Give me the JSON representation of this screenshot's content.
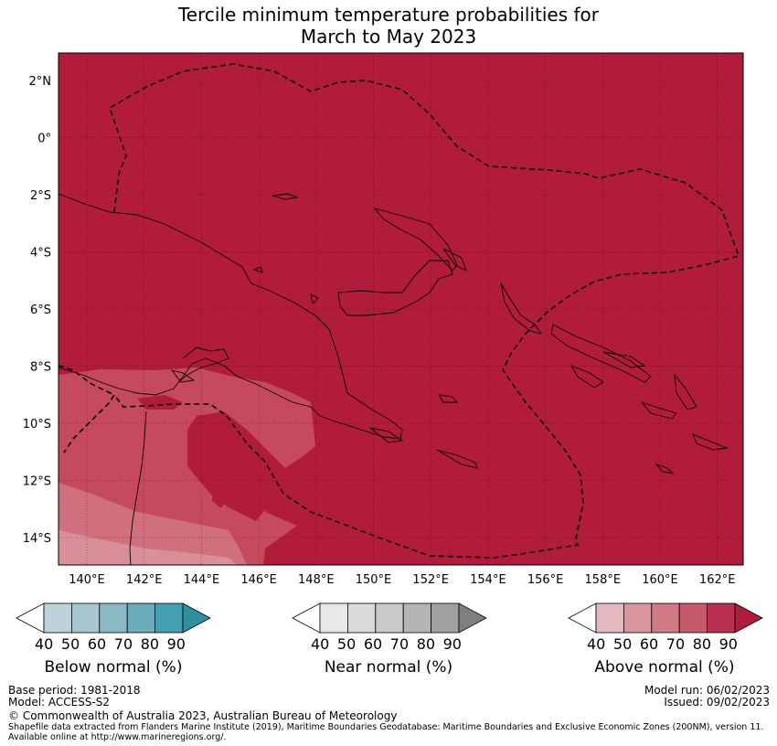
{
  "title_line1": "Tercile minimum temperature probabilities for",
  "title_line2": "March to May 2023",
  "lat_ticks": [
    "2°N",
    "0°",
    "2°S",
    "4°S",
    "6°S",
    "8°S",
    "10°S",
    "12°S",
    "14°S"
  ],
  "lon_ticks": [
    "140°E",
    "142°E",
    "144°E",
    "146°E",
    "148°E",
    "150°E",
    "152°E",
    "154°E",
    "156°E",
    "158°E",
    "160°E",
    "162°E"
  ],
  "colorbars": [
    {
      "label": "Below normal (%)",
      "ticks": [
        "40",
        "50",
        "60",
        "70",
        "80",
        "90"
      ],
      "colors": [
        "#ffffff",
        "#bcd3da",
        "#a6c7cf",
        "#8ab9c4",
        "#6aacba",
        "#43a0b0",
        "#2e8f9e"
      ]
    },
    {
      "label": "Near normal (%)",
      "ticks": [
        "40",
        "50",
        "60",
        "70",
        "80",
        "90"
      ],
      "colors": [
        "#ffffff",
        "#e8e8e8",
        "#d9d9d9",
        "#c9c9c9",
        "#b5b5b5",
        "#a0a0a0",
        "#7f7f7f"
      ]
    },
    {
      "label": "Above normal (%)",
      "ticks": [
        "40",
        "50",
        "60",
        "70",
        "80",
        "90"
      ],
      "colors": [
        "#ffffff",
        "#e3b8bf",
        "#d9959e",
        "#d07a85",
        "#c45a6a",
        "#b93050",
        "#b01c3a"
      ]
    }
  ],
  "colors": {
    "above_90": "#b11c3a",
    "above_80": "#c64a5e",
    "above_70": "#d0707f",
    "above_60": "#d98f9a"
  },
  "meta": {
    "base_period": "Base period: 1981-2018",
    "model": "Model: ACCESS-S2",
    "model_run": "Model run: 06/02/2023",
    "issued": "Issued: 09/02/2023",
    "copyright": "© Commonwealth of Australia 2023, Australian Bureau of Meteorology",
    "shapefile_line1": "Shapefile data extracted from Flanders Marine Institute (2019), Maritime Boundaries Geodatabase: Maritime Boundaries and Exclusive Economic Zones (200NM), version 11.",
    "shapefile_line2": "Available online at http://www.marineregions.org/."
  }
}
